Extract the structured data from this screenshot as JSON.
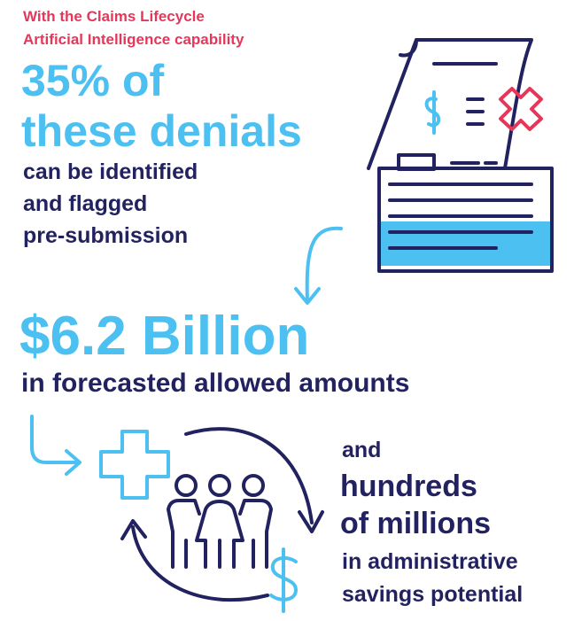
{
  "intro": {
    "lines": [
      "With the Claims Lifecycle",
      "Artificial Intelligence capability"
    ]
  },
  "stat1": {
    "headline": [
      "35% of",
      "these denials"
    ],
    "detail": [
      "can be identified",
      "and flagged",
      "pre-submission"
    ]
  },
  "stat2": {
    "headline": "$6.2 Billion",
    "detail": "in forecasted allowed amounts"
  },
  "stat3": {
    "lead": "and",
    "headline": [
      "hundreds",
      "of millions"
    ],
    "detail": [
      "in administrative",
      "savings potential"
    ]
  }
}
